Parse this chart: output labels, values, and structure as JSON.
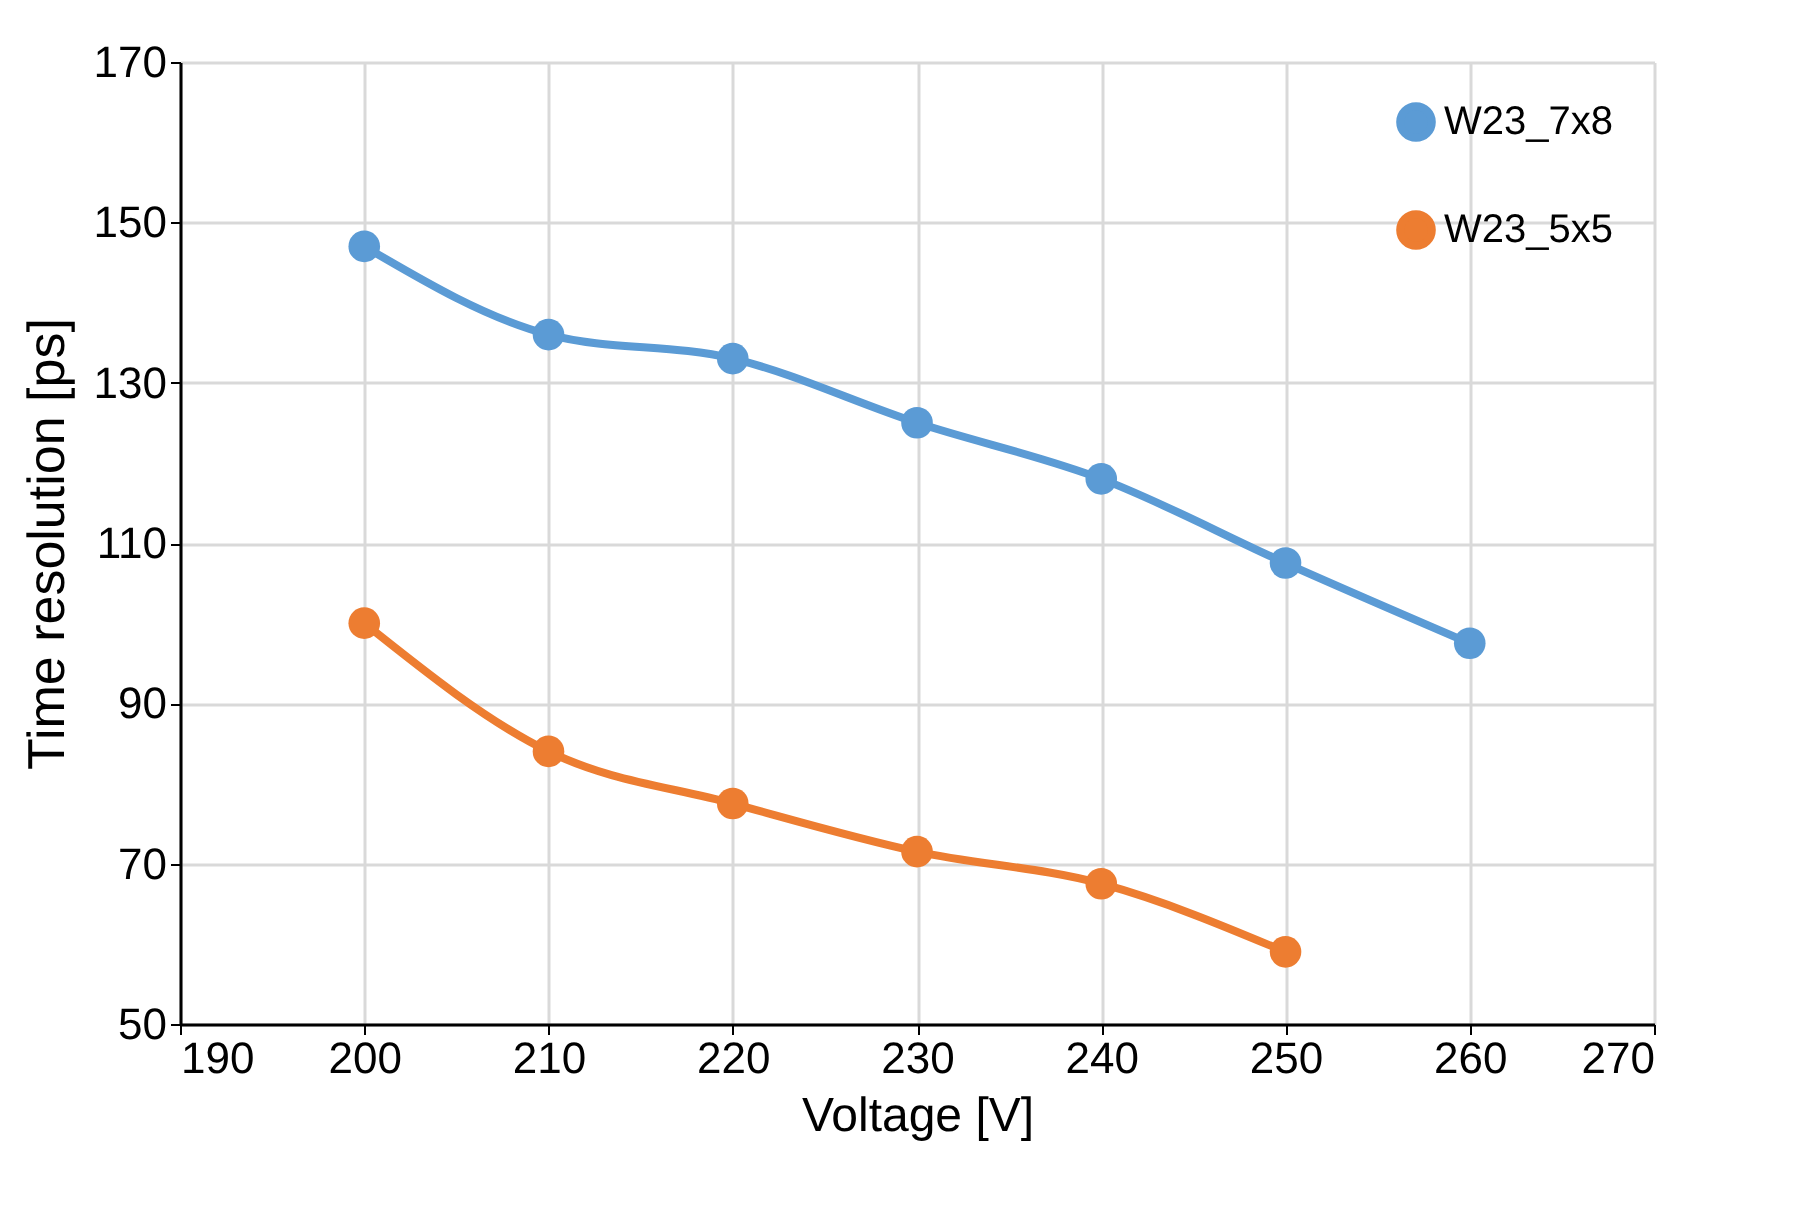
{
  "chart_data": {
    "type": "line",
    "xlabel": "Voltage [V]",
    "ylabel": "Time resolution [ps]",
    "x": [
      200,
      210,
      220,
      230,
      240,
      250,
      260
    ],
    "series": [
      {
        "name": "W23_7x8",
        "color": "#5b9bd5",
        "values": [
          147,
          136,
          133,
          125,
          118,
          107.5,
          97.5
        ]
      },
      {
        "name": "W23_5x5",
        "color": "#ed7d31",
        "values": [
          100,
          84,
          77.5,
          71.5,
          67.5,
          59,
          null
        ]
      }
    ],
    "xlim": [
      190,
      270
    ],
    "xticks": [
      190,
      200,
      210,
      220,
      230,
      240,
      250,
      260,
      270
    ],
    "ylim": [
      50,
      170
    ],
    "yticks": [
      50,
      70,
      90,
      110,
      130,
      150,
      170
    ],
    "grid": true,
    "legend": "top right",
    "marker": "circle",
    "line_style": "solid"
  }
}
